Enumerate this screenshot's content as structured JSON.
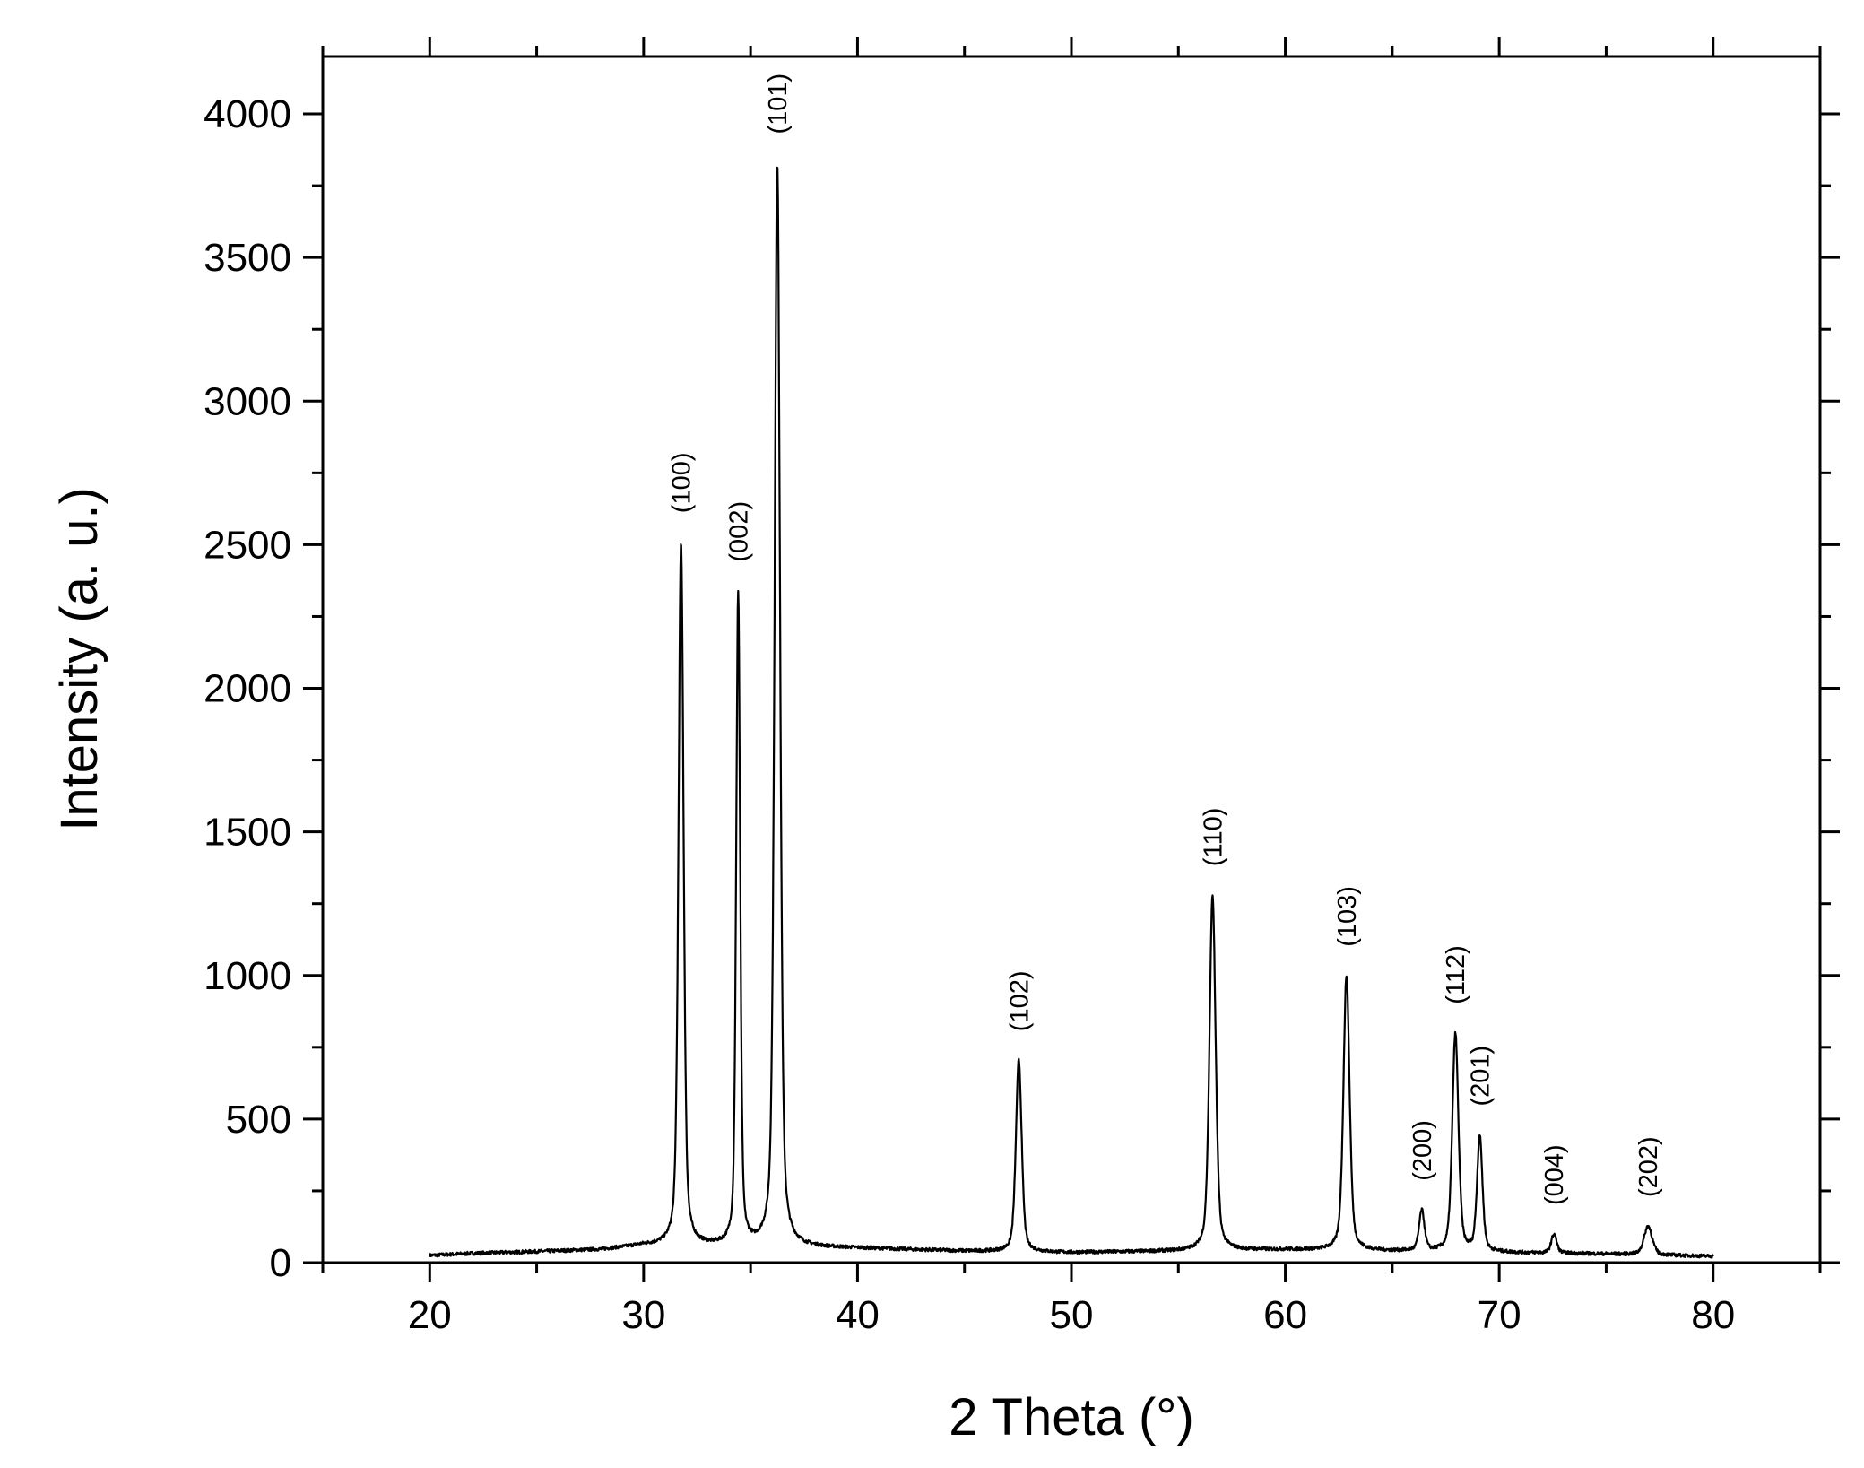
{
  "chart_data": {
    "type": "line",
    "title": "",
    "xlabel": "2 Theta (°)",
    "ylabel": "Intensity (a. u.)",
    "xlim": [
      15,
      85
    ],
    "ylim": [
      0,
      4200
    ],
    "x_ticks": [
      20,
      30,
      40,
      50,
      60,
      70,
      80
    ],
    "y_ticks": [
      0,
      500,
      1000,
      1500,
      2000,
      2500,
      3000,
      3500,
      4000
    ],
    "grid": false,
    "legend": "none",
    "line_color": "#000000",
    "x_start": 20,
    "x_end": 80,
    "baseline": [
      {
        "x": 20,
        "y": 25
      },
      {
        "x": 22,
        "y": 32
      },
      {
        "x": 25,
        "y": 38
      },
      {
        "x": 28,
        "y": 45
      },
      {
        "x": 30,
        "y": 60
      },
      {
        "x": 40,
        "y": 50
      },
      {
        "x": 45,
        "y": 40
      },
      {
        "x": 50,
        "y": 35
      },
      {
        "x": 55,
        "y": 40
      },
      {
        "x": 60,
        "y": 45
      },
      {
        "x": 65,
        "y": 40
      },
      {
        "x": 70,
        "y": 35
      },
      {
        "x": 75,
        "y": 30
      },
      {
        "x": 80,
        "y": 22
      }
    ],
    "peaks": [
      {
        "label": "(100)",
        "x": 31.75,
        "y": 2510,
        "width": 0.28
      },
      {
        "label": "(002)",
        "x": 34.42,
        "y": 2340,
        "width": 0.22
      },
      {
        "label": "(101)",
        "x": 36.25,
        "y": 3830,
        "width": 0.3
      },
      {
        "label": "(102)",
        "x": 47.54,
        "y": 705,
        "width": 0.32
      },
      {
        "label": "(110)",
        "x": 56.6,
        "y": 1280,
        "width": 0.34
      },
      {
        "label": "(103)",
        "x": 62.86,
        "y": 1000,
        "width": 0.34
      },
      {
        "label": "(200)",
        "x": 66.38,
        "y": 185,
        "width": 0.3
      },
      {
        "label": "(112)",
        "x": 67.95,
        "y": 800,
        "width": 0.34
      },
      {
        "label": "(201)",
        "x": 69.09,
        "y": 445,
        "width": 0.3
      },
      {
        "label": "(004)",
        "x": 72.56,
        "y": 100,
        "width": 0.3
      },
      {
        "label": "(202)",
        "x": 76.96,
        "y": 128,
        "width": 0.45
      }
    ],
    "minor_peaks": [
      {
        "x": 33.1,
        "y": 75,
        "width": 0.25
      },
      {
        "x": 59.3,
        "y": 25,
        "width": 0.8
      }
    ]
  }
}
